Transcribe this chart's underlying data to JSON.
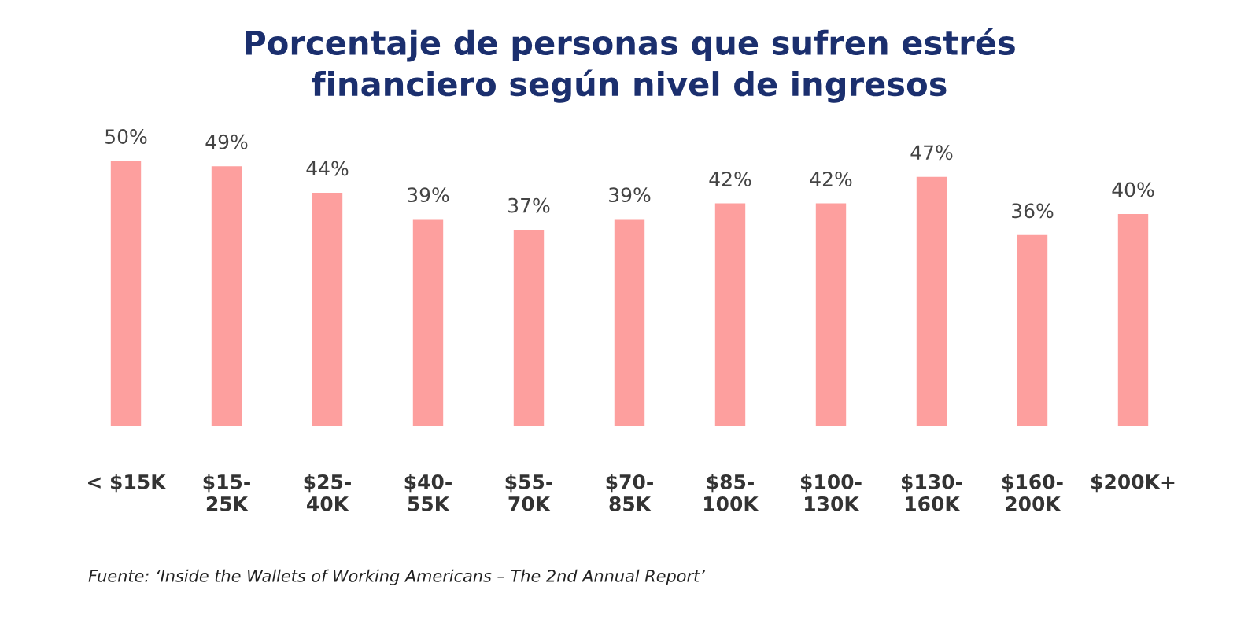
{
  "chart_data": {
    "type": "bar",
    "title": "Porcentaje de personas que sufren estrés\nfinanciero según nivel de ingresos",
    "categories": [
      "< $15K",
      "$15-25K",
      "$25-40K",
      "$40-55K",
      "$55-70K",
      "$70-85K",
      "$85-100K",
      "$100-130K",
      "$130-160K",
      "$160-200K",
      "$200K+"
    ],
    "values": [
      50,
      49,
      44,
      39,
      37,
      39,
      42,
      42,
      47,
      36,
      40
    ],
    "value_labels": [
      "50%",
      "49%",
      "44%",
      "39%",
      "37%",
      "39%",
      "42%",
      "42%",
      "47%",
      "36%",
      "40%"
    ],
    "color": "#fd9f9e",
    "annotations": [
      "Fuente: ‘Inside the Wallets of Working Americans – The 2nd Annual Report’"
    ]
  }
}
